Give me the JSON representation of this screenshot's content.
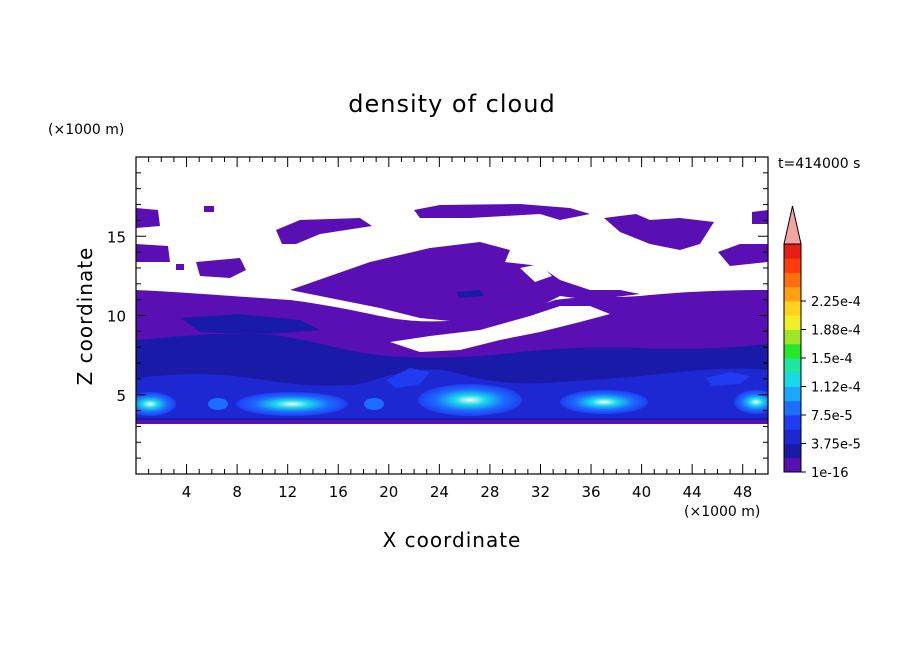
{
  "chart_data": {
    "type": "heatmap",
    "title": "density of cloud",
    "xlabel": "X coordinate",
    "ylabel": "Z coordinate",
    "x_unit": "(×1000 m)",
    "y_unit": "(×1000 m)",
    "time_label": "t=414000 s",
    "xlim": [
      0,
      50
    ],
    "ylim": [
      0,
      20
    ],
    "x_ticks": [
      4,
      8,
      12,
      16,
      20,
      24,
      28,
      32,
      36,
      40,
      44,
      48
    ],
    "y_ticks": [
      5,
      10,
      15
    ],
    "colorbar": {
      "labels": [
        "1e-16",
        "3.75e-5",
        "7.5e-5",
        "1.12e-4",
        "1.5e-4",
        "1.88e-4",
        "2.25e-4"
      ],
      "colors": [
        "#5a0fb4",
        "#1a1aa8",
        "#1e28d2",
        "#1f3cf0",
        "#1c6eff",
        "#1aa8ff",
        "#19d9e6",
        "#1ee6a0",
        "#28e628",
        "#a0e628",
        "#f0f028",
        "#ffd21e",
        "#ffa014",
        "#ff6e0f",
        "#ff3c0a",
        "#e61e14"
      ],
      "overflow_color": "#f4a3a3"
    }
  }
}
